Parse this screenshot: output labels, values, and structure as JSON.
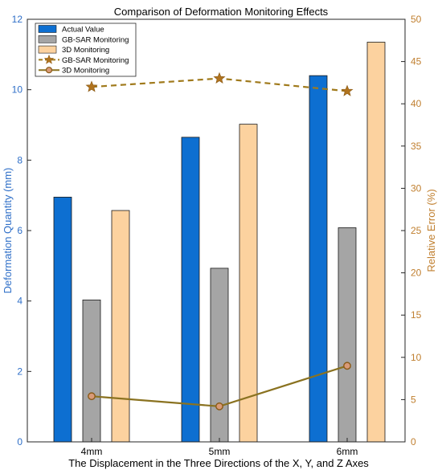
{
  "chart_data": {
    "type": "bar",
    "title": "Comparison of Deformation Monitoring Effects",
    "xlabel": "The Displacement in the Three Directions of the X, Y, and Z Axes",
    "ylabel": "Deformation Quantity (mm)",
    "y2label": "Relative Error (%)",
    "categories": [
      "4mm",
      "5mm",
      "6mm"
    ],
    "ylim": [
      0,
      12
    ],
    "y2lim": [
      0,
      50
    ],
    "yticks": [
      "0",
      "2",
      "4",
      "6",
      "8",
      "10",
      "12"
    ],
    "y2ticks": [
      "0",
      "5",
      "10",
      "15",
      "20",
      "25",
      "30",
      "35",
      "40",
      "45",
      "50"
    ],
    "bar_series": [
      {
        "name": "Actual Value",
        "values": [
          6.95,
          8.65,
          10.4
        ],
        "color": "#0d6fd1"
      },
      {
        "name": "GB-SAR Monitoring",
        "values": [
          4.03,
          4.93,
          6.08
        ],
        "color": "#a5a5a5"
      },
      {
        "name": "3D Monitoring",
        "values": [
          6.57,
          9.02,
          11.35
        ],
        "color": "#fcd29f"
      }
    ],
    "line_series": [
      {
        "name": "GB-SAR Monitoring",
        "values": [
          42.0,
          43.0,
          41.5
        ],
        "color": "#a07a1c",
        "style": "dashed",
        "marker": "star",
        "axis": "right"
      },
      {
        "name": "3D Monitoring",
        "values": [
          5.4,
          4.2,
          9.0
        ],
        "color": "#8a7220",
        "style": "solid",
        "marker": "circle",
        "axis": "right"
      }
    ],
    "left_axis_color": "#2f6fc8",
    "right_axis_color": "#c07f2f",
    "legend_position": "top-left",
    "grid": false
  }
}
